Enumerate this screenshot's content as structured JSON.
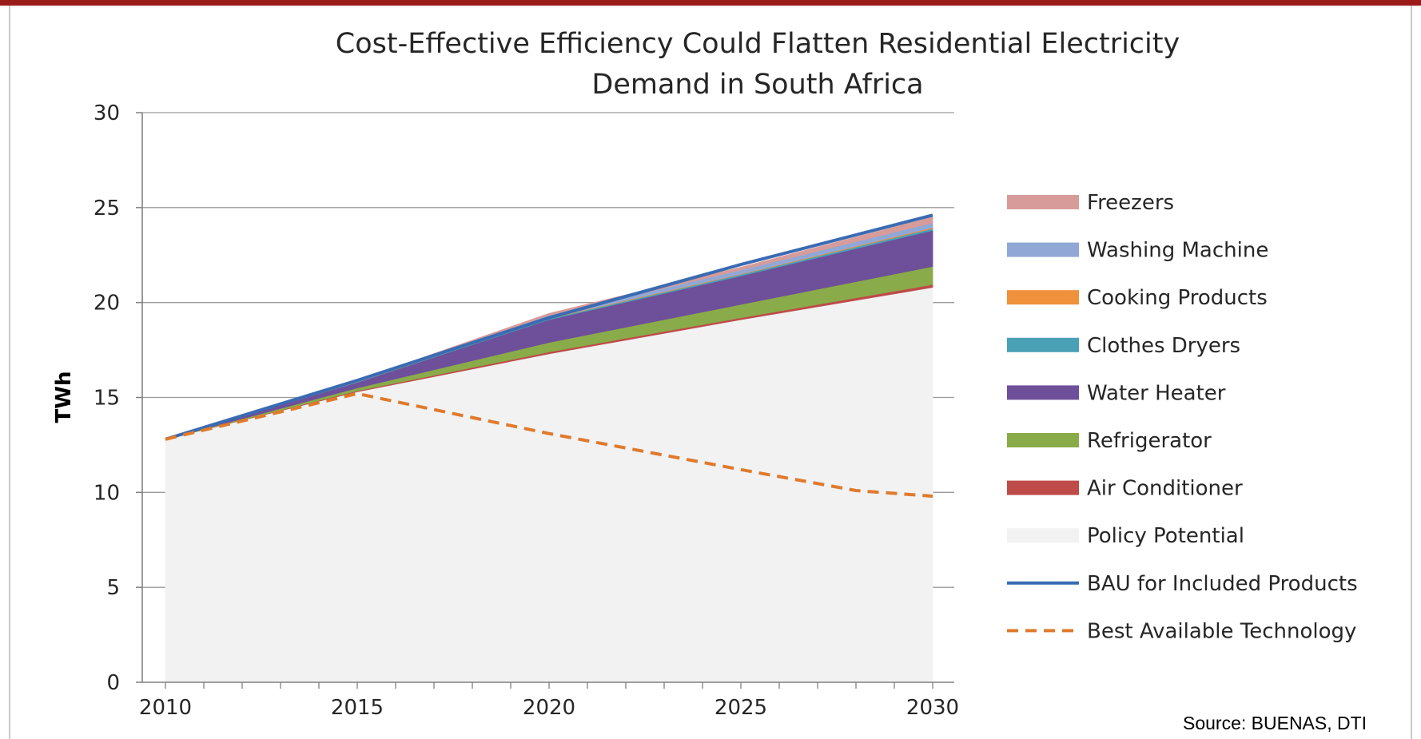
{
  "chart_data": {
    "type": "area",
    "title_line1": "Cost-Effective Efficiency Could Flatten Residential Electricity",
    "title_line2": "Demand in South Africa",
    "xlabel": "",
    "ylabel": "TWh",
    "xlim": [
      2010,
      2030
    ],
    "ylim": [
      0,
      30
    ],
    "yticks": [
      "0",
      "5",
      "10",
      "15",
      "20",
      "25",
      "30"
    ],
    "xticks": [
      "2010",
      "2015",
      "2020",
      "2025",
      "2030"
    ],
    "grid": "horizontal",
    "legend_position": "right",
    "x": [
      2010,
      2015,
      2020,
      2025,
      2030
    ],
    "stack": [
      {
        "name": "Policy Potential",
        "color": "#f2f2f2",
        "values": [
          12.8,
          15.3,
          17.3,
          19.1,
          20.8
        ]
      },
      {
        "name": "Air Conditioner",
        "color": "#be4b48",
        "values": [
          0,
          0.05,
          0.1,
          0.1,
          0.15
        ]
      },
      {
        "name": "Refrigerator",
        "color": "#8aab49",
        "values": [
          0,
          0.15,
          0.5,
          0.7,
          0.95
        ]
      },
      {
        "name": "Water Heater",
        "color": "#6e4f9a",
        "values": [
          0,
          0.3,
          1.2,
          1.5,
          1.9
        ]
      },
      {
        "name": "Clothes Dryers",
        "color": "#4aa0b5",
        "values": [
          0,
          0.02,
          0.05,
          0.08,
          0.1
        ]
      },
      {
        "name": "Cooking Products",
        "color": "#f0913c",
        "values": [
          0,
          0,
          0.03,
          0.03,
          0.05
        ]
      },
      {
        "name": "Washing Machine",
        "color": "#91a8d6",
        "values": [
          0,
          0.05,
          0.15,
          0.2,
          0.25
        ]
      },
      {
        "name": "Freezers",
        "color": "#d79b9a",
        "values": [
          0,
          0.03,
          0.1,
          0.15,
          0.3
        ]
      }
    ],
    "lines": [
      {
        "name": "BAU for Included Products",
        "color": "#3a6bb3",
        "style": "solid",
        "x": [
          2010,
          2015,
          2020,
          2025,
          2030
        ],
        "values": [
          12.8,
          15.9,
          19.2,
          22.0,
          24.6
        ]
      },
      {
        "name": "Best Available Technology",
        "color": "#e07a2c",
        "style": "dashed",
        "x": [
          2010,
          2015,
          2020,
          2025,
          2028,
          2030
        ],
        "values": [
          12.8,
          15.2,
          13.1,
          11.2,
          10.1,
          9.8
        ]
      }
    ],
    "legend": [
      {
        "label": "Freezers",
        "color": "#d79b9a",
        "kind": "box"
      },
      {
        "label": "Washing Machine",
        "color": "#91a8d6",
        "kind": "box"
      },
      {
        "label": "Cooking Products",
        "color": "#f0913c",
        "kind": "box"
      },
      {
        "label": "Clothes Dryers",
        "color": "#4aa0b5",
        "kind": "box"
      },
      {
        "label": "Water Heater",
        "color": "#6e4f9a",
        "kind": "box"
      },
      {
        "label": "Refrigerator",
        "color": "#8aab49",
        "kind": "box"
      },
      {
        "label": "Air Conditioner",
        "color": "#be4b48",
        "kind": "box"
      },
      {
        "label": "Policy Potential",
        "color": "#f2f2f2",
        "kind": "box"
      },
      {
        "label": "BAU for Included Products",
        "color": "#3a6bb3",
        "kind": "line"
      },
      {
        "label": "Best Available Technology",
        "color": "#e07a2c",
        "kind": "dash"
      }
    ]
  },
  "source_note": "Source:  BUENAS, DTI"
}
